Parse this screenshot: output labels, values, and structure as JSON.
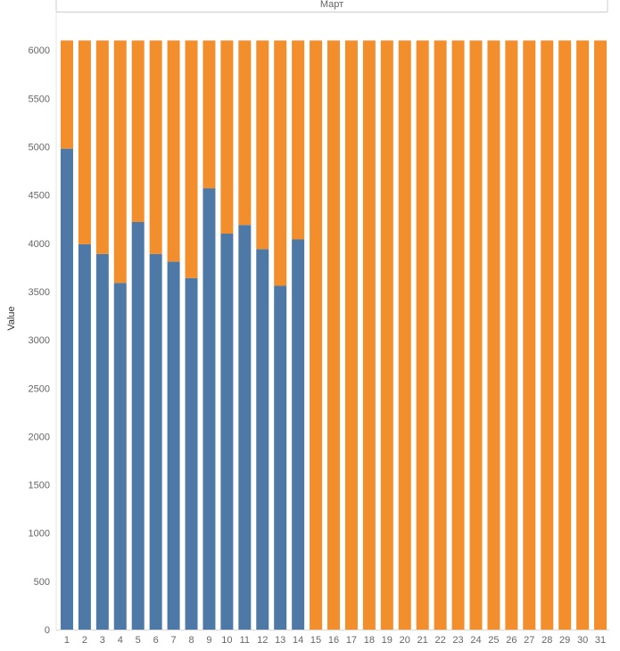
{
  "chart_data": {
    "type": "bar",
    "stacked": true,
    "header": "Март",
    "ylabel": "Value",
    "xlabel": "",
    "ylim": [
      0,
      6150
    ],
    "yticks": [
      0,
      500,
      1000,
      1500,
      2000,
      2500,
      3000,
      3500,
      4000,
      4500,
      5000,
      5500,
      6000
    ],
    "categories": [
      "1",
      "2",
      "3",
      "4",
      "5",
      "6",
      "7",
      "8",
      "9",
      "10",
      "11",
      "12",
      "13",
      "14",
      "15",
      "16",
      "17",
      "18",
      "19",
      "20",
      "21",
      "22",
      "23",
      "24",
      "25",
      "26",
      "27",
      "28",
      "29",
      "30",
      "31"
    ],
    "series": [
      {
        "color": "#4e79a7",
        "values": [
          4980,
          3990,
          3890,
          3590,
          4220,
          3890,
          3810,
          3640,
          4570,
          4100,
          4190,
          3940,
          3560,
          4040,
          0,
          0,
          0,
          0,
          0,
          0,
          0,
          0,
          0,
          0,
          0,
          0,
          0,
          0,
          0,
          0,
          0
        ]
      },
      {
        "color": "#f28e2b",
        "values": [
          1120,
          2110,
          2210,
          2510,
          1880,
          2210,
          2290,
          2460,
          1530,
          2000,
          1910,
          2160,
          2540,
          2060,
          6100,
          6100,
          6100,
          6100,
          6100,
          6100,
          6100,
          6100,
          6100,
          6100,
          6100,
          6100,
          6100,
          6100,
          6100,
          6100,
          6100
        ]
      }
    ],
    "grid": false,
    "legend": "none"
  }
}
